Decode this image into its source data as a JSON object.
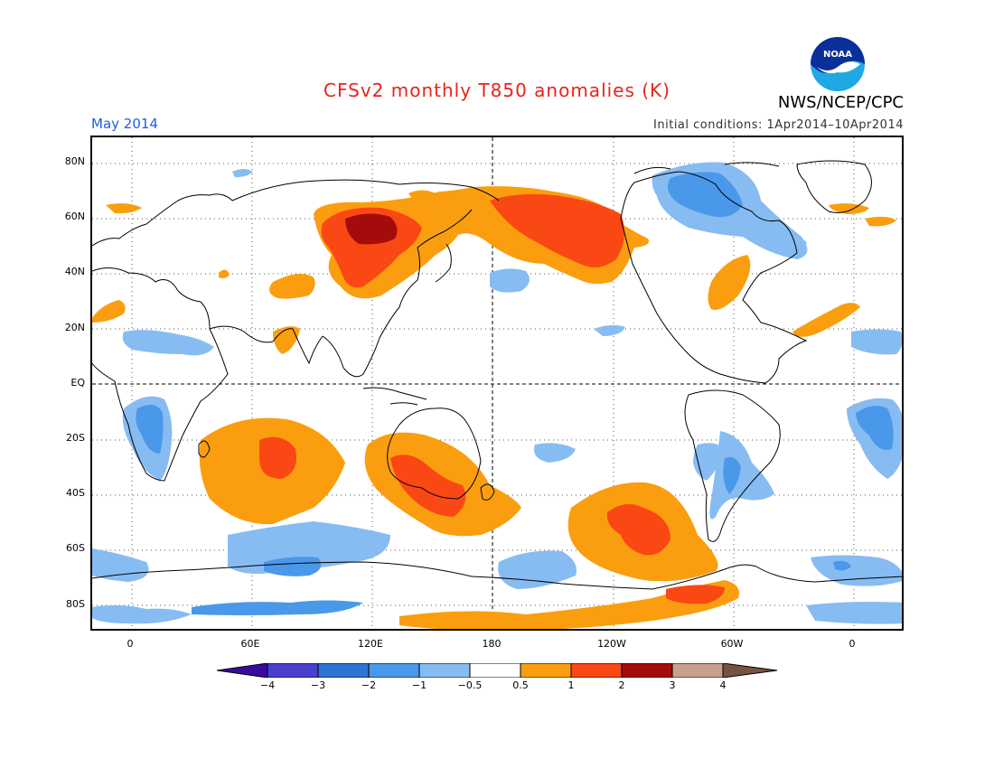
{
  "header": {
    "title": "CFSv2 monthly T850 anomalies (K)",
    "month": "May 2014",
    "initial_conditions": "Initial conditions: 1Apr2014–10Apr2014",
    "agency": "NWS/NCEP/CPC",
    "logo_text": "NOAA"
  },
  "axes": {
    "lat_labels": [
      "80N",
      "60N",
      "40N",
      "20N",
      "EQ",
      "20S",
      "40S",
      "60S",
      "80S"
    ],
    "lon_labels": [
      "0",
      "60E",
      "120E",
      "180",
      "120W",
      "60W",
      "0"
    ]
  },
  "colorbar": {
    "labels": [
      "−4",
      "−3",
      "−2",
      "−1",
      "−0.5",
      "0.5",
      "1",
      "2",
      "3",
      "4"
    ],
    "colors": [
      "#3a0aa0",
      "#4a3fce",
      "#2e73d6",
      "#4a98ea",
      "#87bcf2",
      "#ffffff",
      "#fa9e0f",
      "#fa4814",
      "#a40c0c",
      "#c8a08c",
      "#7a5040"
    ]
  },
  "legend_colors": {
    "neg_1": "#87bcf2",
    "neg_2": "#4a98ea",
    "pos_1": "#fa9e0f",
    "pos_2": "#fa4814",
    "pos_3": "#a40c0c"
  }
}
